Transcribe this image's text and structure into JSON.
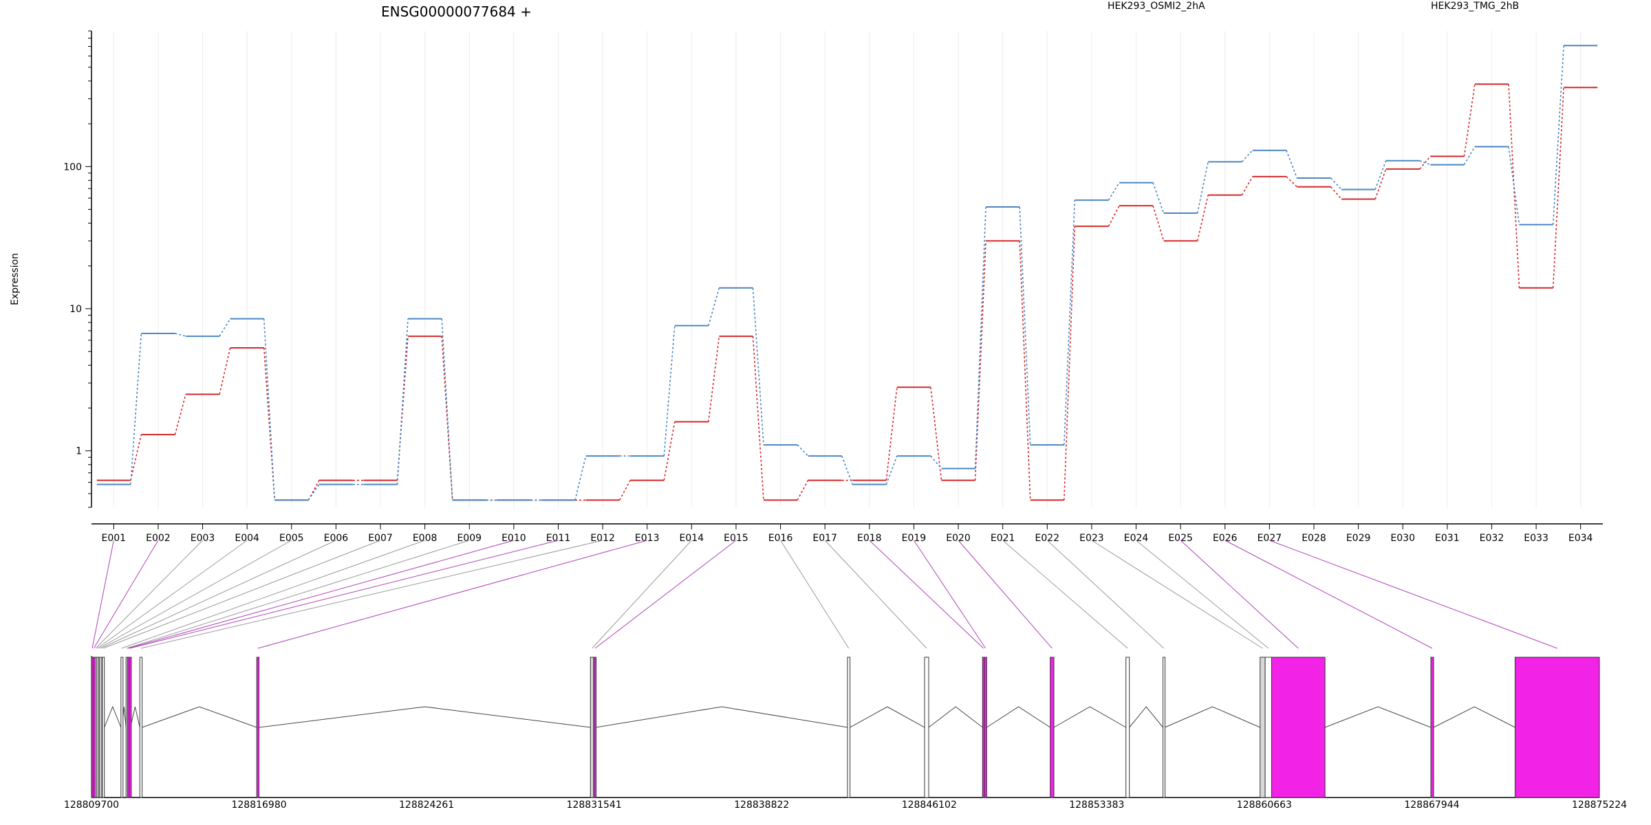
{
  "chart_data": {
    "type": "line",
    "title": "ENSG00000077684 +",
    "ylabel": "Expression",
    "y_scale": "log",
    "ylim": [
      0.4,
      900
    ],
    "y_ticks": [
      1,
      10,
      100
    ],
    "y_tick_labels": [
      "1",
      "10",
      "100"
    ],
    "categories": [
      "E001",
      "E002",
      "E003",
      "E004",
      "E005",
      "E006",
      "E007",
      "E008",
      "E009",
      "E010",
      "E011",
      "E012",
      "E013",
      "E014",
      "E015",
      "E016",
      "E017",
      "E018",
      "E019",
      "E020",
      "E021",
      "E022",
      "E023",
      "E024",
      "E025",
      "E026",
      "E027",
      "E028",
      "E029",
      "E030",
      "E031",
      "E032",
      "E033",
      "E034"
    ],
    "series": [
      {
        "name": "HEK293_OSMI2_2hA",
        "color": "#d62728",
        "values": [
          0.62,
          1.3,
          2.5,
          5.3,
          0.45,
          0.62,
          0.62,
          6.4,
          0.45,
          0.45,
          0.45,
          0.45,
          0.62,
          1.6,
          6.4,
          0.45,
          0.62,
          0.62,
          2.8,
          0.62,
          30,
          0.45,
          38,
          53,
          30,
          63,
          85,
          72,
          59,
          96,
          118,
          380,
          14,
          360
        ]
      },
      {
        "name": "HEK293_TMG_2hB",
        "color": "#4a86c0",
        "values": [
          0.58,
          6.7,
          6.4,
          8.5,
          0.45,
          0.58,
          0.58,
          8.5,
          0.45,
          0.45,
          0.45,
          0.92,
          0.92,
          7.6,
          14,
          1.1,
          0.92,
          0.58,
          0.92,
          0.75,
          52,
          1.1,
          58,
          77,
          47,
          108,
          130,
          83,
          69,
          110,
          103,
          138,
          39,
          710
        ]
      }
    ],
    "gene_model": {
      "coord_labels": [
        "128809700",
        "128816980",
        "128824261",
        "128831541",
        "128838822",
        "128846102",
        "128853383",
        "128860663",
        "128867944",
        "128875224"
      ],
      "coord_range": [
        128809700,
        128875224
      ],
      "exons": [
        {
          "id": "E001",
          "start": 128809700,
          "end": 128809760,
          "color": "#f222e6"
        },
        {
          "id": "E002",
          "start": 128809770,
          "end": 128809830,
          "color": "#f222e6"
        },
        {
          "id": "E003",
          "start": 128809860,
          "end": 128809900,
          "color": "#ffffff"
        },
        {
          "id": "E004",
          "start": 128809920,
          "end": 128809980,
          "color": "#d8d8d8"
        },
        {
          "id": "E005",
          "start": 128810000,
          "end": 128810040,
          "color": "#ffffff"
        },
        {
          "id": "E006",
          "start": 128810050,
          "end": 128810150,
          "color": "#d8d8d8"
        },
        {
          "id": "E007",
          "start": 128810170,
          "end": 128810260,
          "color": "#ffffff"
        },
        {
          "id": "E008",
          "start": 128810980,
          "end": 128811030,
          "color": "#ffffff"
        },
        {
          "id": "E009",
          "start": 128811200,
          "end": 128811240,
          "color": "#ffffff"
        },
        {
          "id": "E010",
          "start": 128811260,
          "end": 128811330,
          "color": "#f222e6"
        },
        {
          "id": "E011",
          "start": 128811340,
          "end": 128811390,
          "color": "#f222e6"
        },
        {
          "id": "E012",
          "start": 128811800,
          "end": 128811900,
          "color": "#ffffff"
        },
        {
          "id": "E013",
          "start": 128816880,
          "end": 128816980,
          "color": "#f222e6"
        },
        {
          "id": "E014",
          "start": 128831380,
          "end": 128831520,
          "color": "#d8d8d8"
        },
        {
          "id": "E015",
          "start": 128831540,
          "end": 128831620,
          "color": "#f222e6"
        },
        {
          "id": "E016",
          "start": 128842550,
          "end": 128842660,
          "color": "#ffffff"
        },
        {
          "id": "E017",
          "start": 128845900,
          "end": 128846080,
          "color": "#ffffff"
        },
        {
          "id": "E018",
          "start": 128848420,
          "end": 128848500,
          "color": "#f222e6"
        },
        {
          "id": "E019",
          "start": 128848500,
          "end": 128848600,
          "color": "#f222e6"
        },
        {
          "id": "E020",
          "start": 128851360,
          "end": 128851520,
          "color": "#f222e6"
        },
        {
          "id": "E021",
          "start": 128854650,
          "end": 128854800,
          "color": "#ffffff"
        },
        {
          "id": "E022",
          "start": 128856260,
          "end": 128856340,
          "color": "#ffffff"
        },
        {
          "id": "E023",
          "start": 128860480,
          "end": 128860700,
          "color": "#d8d8d8"
        },
        {
          "id": "E024",
          "start": 128860700,
          "end": 128860980,
          "color": "#ffffff"
        },
        {
          "id": "E025",
          "start": 128860980,
          "end": 128863300,
          "color": "#f222e6"
        },
        {
          "id": "E026",
          "start": 128867900,
          "end": 128868020,
          "color": "#f222e6"
        },
        {
          "id": "E027",
          "start": 128871560,
          "end": 128875224,
          "color": "#f222e6"
        }
      ]
    },
    "legend_position": "top"
  }
}
